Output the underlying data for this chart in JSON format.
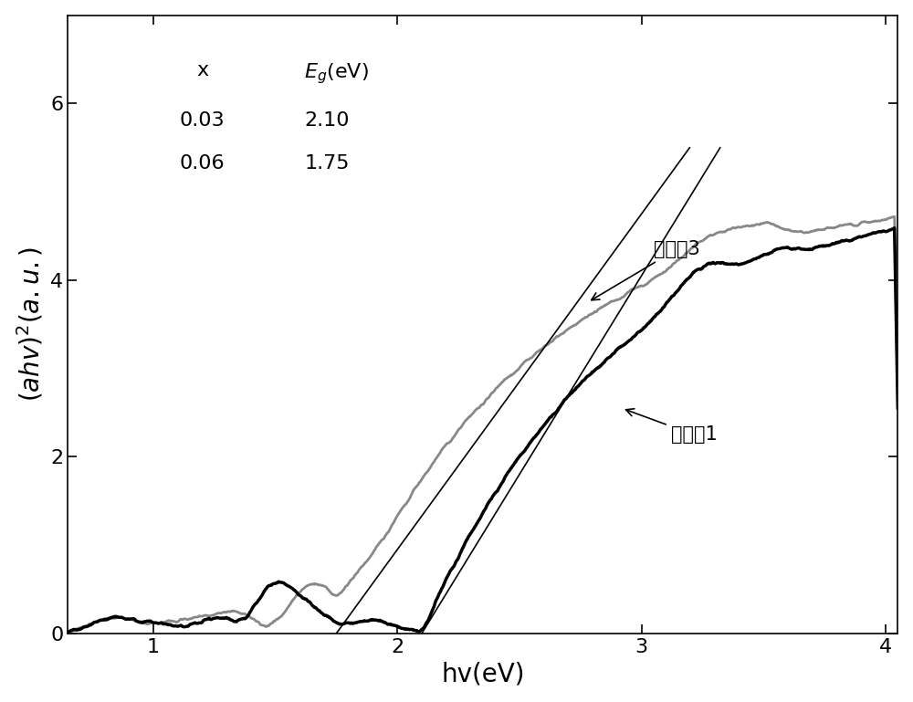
{
  "xlim": [
    0.65,
    4.05
  ],
  "ylim": [
    0,
    7
  ],
  "xlabel": "hv(eV)",
  "ylabel": "(ahv)$^2$(a.u.)",
  "yticks": [
    0,
    2,
    4,
    6
  ],
  "xticks": [
    1,
    2,
    3,
    4
  ],
  "label_example3": "实施例3",
  "label_example1": "实施例1",
  "color_example3": "#888888",
  "color_example1": "#000000",
  "font_size_label": 20,
  "font_size_tick": 16,
  "font_size_annot": 15
}
